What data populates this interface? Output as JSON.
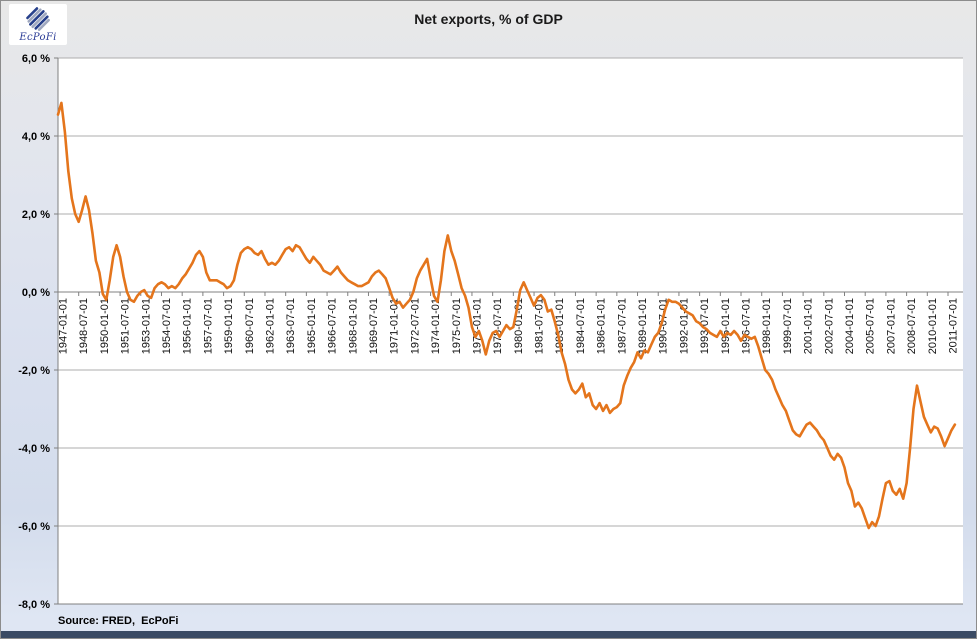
{
  "header": {
    "title": "Net exports, % of GDP",
    "logo_text": "EcPoFi"
  },
  "footer": {
    "source": "Source: FRED,  EcPoFi"
  },
  "colors": {
    "line": "#E4751C",
    "grid": "#ADADAD",
    "axis": "#808080",
    "plot_background": "#FFFFFF",
    "bottom_bar": "#3A4A63"
  },
  "chart_data": {
    "type": "line",
    "title": "Net exports, % of GDP",
    "x_start": "1947-01-01",
    "x_frequency": "quarterly",
    "ylim": [
      -8,
      6
    ],
    "grid": "horizontal",
    "legend": "none",
    "y_tick_labels": [
      "6,0 %",
      "4,0 %",
      "2,0 %",
      "0,0 %",
      "-2,0 %",
      "-4,0 %",
      "-6,0 %",
      "-8,0 %"
    ],
    "y_tick_values": [
      6,
      4,
      2,
      0,
      -2,
      -4,
      -6,
      -8
    ],
    "x_tick_labels": [
      "1947-01-01",
      "1948-07-01",
      "1950-01-01",
      "1951-07-01",
      "1953-01-01",
      "1954-07-01",
      "1956-01-01",
      "1957-07-01",
      "1959-01-01",
      "1960-07-01",
      "1962-01-01",
      "1963-07-01",
      "1965-01-01",
      "1966-07-01",
      "1968-01-01",
      "1969-07-01",
      "1971-01-01",
      "1972-07-01",
      "1974-01-01",
      "1975-07-01",
      "1977-01-01",
      "1978-07-01",
      "1980-01-01",
      "1981-07-01",
      "1983-01-01",
      "1984-07-01",
      "1986-01-01",
      "1987-07-01",
      "1989-01-01",
      "1990-07-01",
      "1992-01-01",
      "1993-07-01",
      "1995-01-01",
      "1996-07-01",
      "1998-01-01",
      "1999-07-01",
      "2001-01-01",
      "2002-07-01",
      "2004-01-01",
      "2005-07-01",
      "2007-01-01",
      "2008-07-01",
      "2010-01-01",
      "2011-07-01"
    ],
    "series": [
      {
        "name": "Net exports, % of GDP",
        "color": "#E4751C",
        "values": [
          4.55,
          4.85,
          4.1,
          3.1,
          2.4,
          2.0,
          1.8,
          2.1,
          2.45,
          2.1,
          1.5,
          0.8,
          0.5,
          -0.05,
          -0.2,
          0.3,
          0.9,
          1.2,
          0.9,
          0.4,
          0.0,
          -0.2,
          -0.25,
          -0.1,
          0.0,
          0.05,
          -0.1,
          -0.15,
          0.1,
          0.2,
          0.25,
          0.2,
          0.1,
          0.15,
          0.1,
          0.2,
          0.35,
          0.45,
          0.6,
          0.75,
          0.95,
          1.05,
          0.9,
          0.5,
          0.3,
          0.3,
          0.3,
          0.25,
          0.2,
          0.1,
          0.15,
          0.3,
          0.7,
          1.0,
          1.1,
          1.15,
          1.1,
          1.0,
          0.95,
          1.05,
          0.85,
          0.7,
          0.75,
          0.7,
          0.8,
          0.95,
          1.1,
          1.15,
          1.05,
          1.2,
          1.15,
          1.0,
          0.85,
          0.75,
          0.9,
          0.8,
          0.7,
          0.55,
          0.5,
          0.45,
          0.55,
          0.65,
          0.5,
          0.4,
          0.3,
          0.25,
          0.2,
          0.15,
          0.15,
          0.2,
          0.25,
          0.4,
          0.5,
          0.55,
          0.45,
          0.35,
          0.1,
          -0.15,
          -0.3,
          -0.25,
          -0.4,
          -0.3,
          -0.2,
          0.0,
          0.35,
          0.55,
          0.7,
          0.85,
          0.35,
          -0.1,
          -0.25,
          0.3,
          1.05,
          1.45,
          1.05,
          0.8,
          0.45,
          0.1,
          -0.1,
          -0.4,
          -0.9,
          -1.15,
          -1.0,
          -1.25,
          -1.6,
          -1.25,
          -1.05,
          -1.0,
          -1.15,
          -1.0,
          -0.85,
          -0.95,
          -0.9,
          -0.45,
          0.05,
          0.25,
          0.05,
          -0.15,
          -0.35,
          -0.15,
          -0.08,
          -0.2,
          -0.5,
          -0.45,
          -0.75,
          -1.1,
          -1.55,
          -1.85,
          -2.25,
          -2.5,
          -2.6,
          -2.5,
          -2.35,
          -2.7,
          -2.6,
          -2.9,
          -3.0,
          -2.85,
          -3.05,
          -2.9,
          -3.1,
          -3.0,
          -2.95,
          -2.85,
          -2.4,
          -2.15,
          -1.95,
          -1.8,
          -1.55,
          -1.7,
          -1.5,
          -1.55,
          -1.35,
          -1.15,
          -1.05,
          -0.8,
          -0.45,
          -0.2,
          -0.25,
          -0.25,
          -0.3,
          -0.4,
          -0.5,
          -0.55,
          -0.6,
          -0.75,
          -0.8,
          -0.9,
          -0.95,
          -1.05,
          -1.1,
          -1.15,
          -1.0,
          -1.15,
          -1.05,
          -1.1,
          -1.0,
          -1.1,
          -1.25,
          -1.1,
          -1.15,
          -1.2,
          -1.15,
          -1.4,
          -1.7,
          -2.0,
          -2.1,
          -2.25,
          -2.5,
          -2.7,
          -2.9,
          -3.05,
          -3.3,
          -3.55,
          -3.65,
          -3.7,
          -3.55,
          -3.4,
          -3.35,
          -3.45,
          -3.55,
          -3.7,
          -3.8,
          -4.0,
          -4.2,
          -4.3,
          -4.15,
          -4.25,
          -4.5,
          -4.9,
          -5.1,
          -5.5,
          -5.4,
          -5.55,
          -5.8,
          -6.05,
          -5.9,
          -6.0,
          -5.75,
          -5.3,
          -4.9,
          -4.85,
          -5.1,
          -5.2,
          -5.05,
          -5.3,
          -4.9,
          -4.0,
          -3.0,
          -2.4,
          -2.8,
          -3.2,
          -3.4,
          -3.6,
          -3.45,
          -3.5,
          -3.7,
          -3.95,
          -3.75,
          -3.55,
          -3.4
        ]
      }
    ]
  }
}
